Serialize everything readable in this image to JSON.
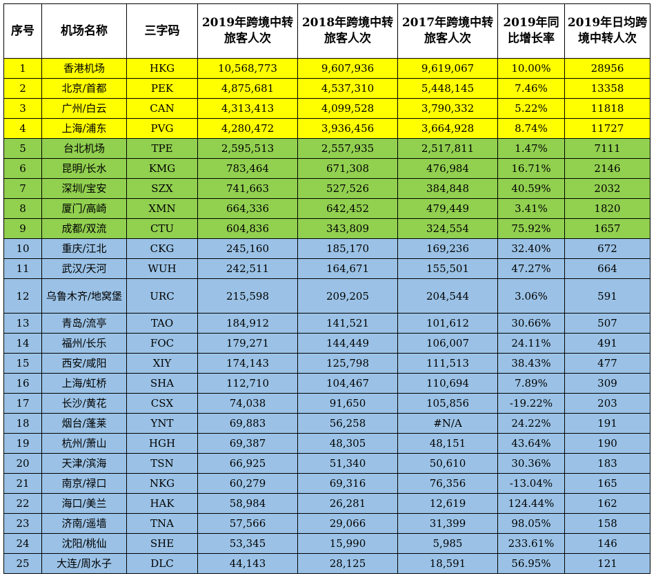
{
  "columns": [
    "序号",
    "机场名称",
    "三字码",
    "2019年跨境中转旅客人次",
    "2018年跨境中转旅客人次",
    "2017年跨境中转旅客人次",
    "2019年同比增长率",
    "2019年日均跨境中转人次"
  ],
  "colors": {
    "tier1": "#ffff00",
    "tier2": "#92d050",
    "tier3": "#9bc2e6"
  },
  "rows": [
    {
      "tier": 1,
      "cells": [
        "1",
        "香港机场",
        "HKG",
        "10,568,773",
        "9,607,936",
        "9,619,067",
        "10.00%",
        "28956"
      ]
    },
    {
      "tier": 1,
      "cells": [
        "2",
        "北京/首都",
        "PEK",
        "4,875,681",
        "4,537,310",
        "5,448,145",
        "7.46%",
        "13358"
      ]
    },
    {
      "tier": 1,
      "cells": [
        "3",
        "广州/白云",
        "CAN",
        "4,313,413",
        "4,099,528",
        "3,790,332",
        "5.22%",
        "11818"
      ]
    },
    {
      "tier": 1,
      "cells": [
        "4",
        "上海/浦东",
        "PVG",
        "4,280,472",
        "3,936,456",
        "3,664,928",
        "8.74%",
        "11727"
      ]
    },
    {
      "tier": 2,
      "cells": [
        "5",
        "台北机场",
        "TPE",
        "2,595,513",
        "2,557,935",
        "2,517,811",
        "1.47%",
        "7111"
      ]
    },
    {
      "tier": 2,
      "cells": [
        "6",
        "昆明/长水",
        "KMG",
        "783,464",
        "671,308",
        "476,984",
        "16.71%",
        "2146"
      ]
    },
    {
      "tier": 2,
      "cells": [
        "7",
        "深圳/宝安",
        "SZX",
        "741,663",
        "527,526",
        "384,848",
        "40.59%",
        "2032"
      ]
    },
    {
      "tier": 2,
      "cells": [
        "8",
        "厦门/高崎",
        "XMN",
        "664,336",
        "642,452",
        "479,449",
        "3.41%",
        "1820"
      ]
    },
    {
      "tier": 2,
      "cells": [
        "9",
        "成都/双流",
        "CTU",
        "604,836",
        "343,809",
        "324,554",
        "75.92%",
        "1657"
      ]
    },
    {
      "tier": 3,
      "cells": [
        "10",
        "重庆/江北",
        "CKG",
        "245,160",
        "185,170",
        "169,236",
        "32.40%",
        "672"
      ]
    },
    {
      "tier": 3,
      "cells": [
        "11",
        "武汉/天河",
        "WUH",
        "242,511",
        "164,671",
        "155,501",
        "47.27%",
        "664"
      ]
    },
    {
      "tier": 3,
      "tall": true,
      "cells": [
        "12",
        "乌鲁木齐/地窝堡",
        "URC",
        "215,598",
        "209,205",
        "204,544",
        "3.06%",
        "591"
      ]
    },
    {
      "tier": 3,
      "cells": [
        "13",
        "青岛/流亭",
        "TAO",
        "184,912",
        "141,521",
        "101,612",
        "30.66%",
        "507"
      ]
    },
    {
      "tier": 3,
      "cells": [
        "14",
        "福州/长乐",
        "FOC",
        "179,271",
        "144,449",
        "106,007",
        "24.11%",
        "491"
      ]
    },
    {
      "tier": 3,
      "cells": [
        "15",
        "西安/咸阳",
        "XIY",
        "174,143",
        "125,798",
        "111,513",
        "38.43%",
        "477"
      ]
    },
    {
      "tier": 3,
      "cells": [
        "16",
        "上海/虹桥",
        "SHA",
        "112,710",
        "104,467",
        "110,694",
        "7.89%",
        "309"
      ]
    },
    {
      "tier": 3,
      "cells": [
        "17",
        "长沙/黄花",
        "CSX",
        "74,038",
        "91,650",
        "105,856",
        "-19.22%",
        "203"
      ]
    },
    {
      "tier": 3,
      "cells": [
        "18",
        "烟台/蓬莱",
        "YNT",
        "69,883",
        "56,258",
        "#N/A",
        "24.22%",
        "191"
      ]
    },
    {
      "tier": 3,
      "cells": [
        "19",
        "杭州/萧山",
        "HGH",
        "69,387",
        "48,305",
        "48,151",
        "43.64%",
        "190"
      ]
    },
    {
      "tier": 3,
      "cells": [
        "20",
        "天津/滨海",
        "TSN",
        "66,925",
        "51,340",
        "50,610",
        "30.36%",
        "183"
      ]
    },
    {
      "tier": 3,
      "cells": [
        "21",
        "南京/禄口",
        "NKG",
        "60,279",
        "69,316",
        "76,356",
        "-13.04%",
        "165"
      ]
    },
    {
      "tier": 3,
      "cells": [
        "22",
        "海口/美兰",
        "HAK",
        "58,984",
        "26,281",
        "12,619",
        "124.44%",
        "162"
      ]
    },
    {
      "tier": 3,
      "cells": [
        "23",
        "济南/遥墙",
        "TNA",
        "57,566",
        "29,066",
        "31,399",
        "98.05%",
        "158"
      ]
    },
    {
      "tier": 3,
      "cells": [
        "24",
        "沈阳/桃仙",
        "SHE",
        "53,345",
        "15,990",
        "5,985",
        "233.61%",
        "146"
      ]
    },
    {
      "tier": 3,
      "cells": [
        "25",
        "大连/周水子",
        "DLC",
        "44,143",
        "28,125",
        "18,591",
        "56.95%",
        "121"
      ]
    }
  ]
}
